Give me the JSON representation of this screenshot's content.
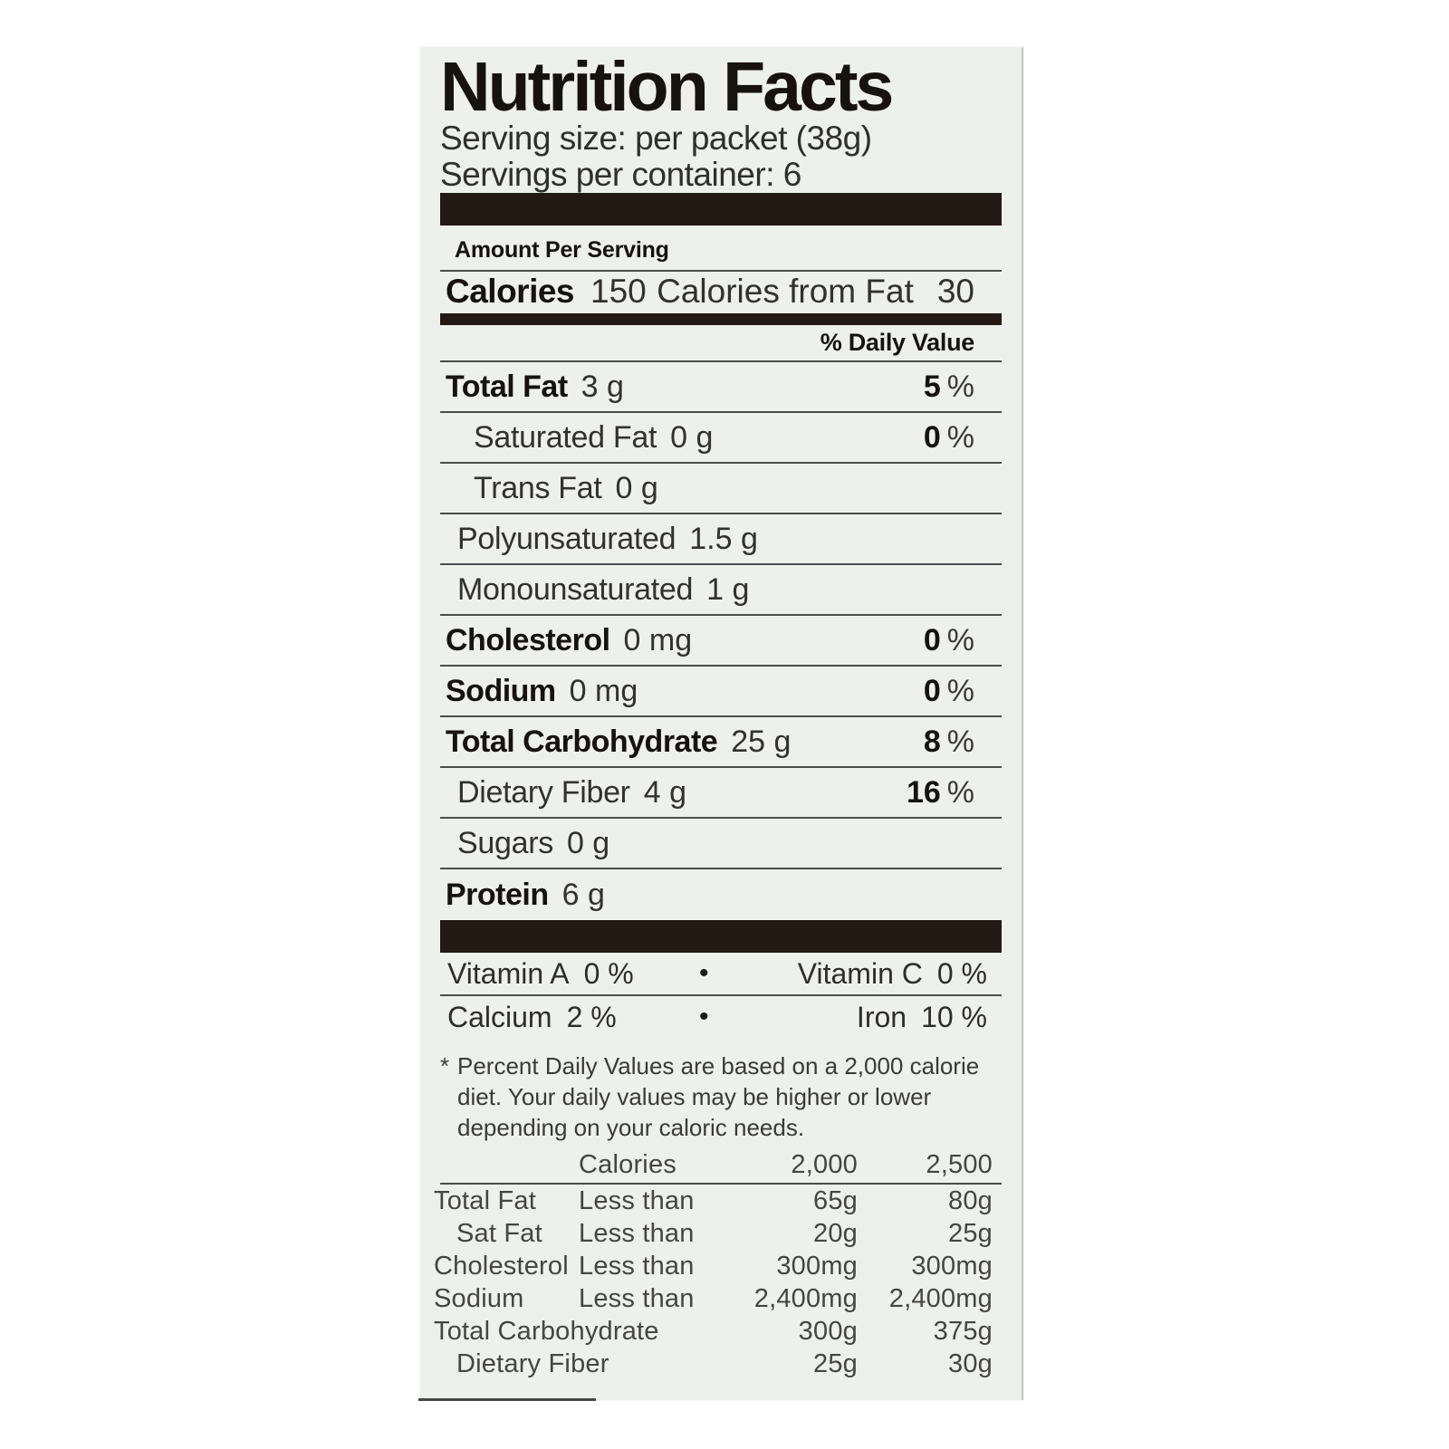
{
  "label": {
    "title": "Nutrition Facts",
    "serving_size": "Serving size: per packet (38g)",
    "servings_per_container": "Servings per container: 6",
    "amount_per_serving": "Amount Per Serving",
    "calories": {
      "label": "Calories",
      "value": "150",
      "from_fat_label": "Calories from Fat",
      "from_fat_value": "30"
    },
    "daily_value_header": "% Daily Value",
    "percent_sign": "%",
    "bullet": "•",
    "nutrient_rows": [
      {
        "name": "Total Fat",
        "amount": "3 g",
        "dv": "5"
      },
      {
        "name": "Saturated Fat",
        "amount": "0 g",
        "dv": "0"
      },
      {
        "name": "Trans Fat",
        "amount": "0 g",
        "dv": ""
      },
      {
        "name": "Polyunsaturated",
        "amount": "1.5 g",
        "dv": ""
      },
      {
        "name": "Monounsaturated",
        "amount": "1 g",
        "dv": ""
      },
      {
        "name": "Cholesterol",
        "amount": "0 mg",
        "dv": "0"
      },
      {
        "name": "Sodium",
        "amount": "0 mg",
        "dv": "0"
      },
      {
        "name": "Total Carbohydrate",
        "amount": "25 g",
        "dv": "8"
      },
      {
        "name": "Dietary Fiber",
        "amount": "4 g",
        "dv": "16"
      },
      {
        "name": "Sugars",
        "amount": "0 g",
        "dv": ""
      },
      {
        "name": "Protein",
        "amount": "6 g",
        "dv": ""
      }
    ],
    "micronutrient_rows": [
      {
        "left_name": "Vitamin A",
        "left_value": "0 %",
        "right_name": "Vitamin C",
        "right_value": "0 %"
      },
      {
        "left_name": "Calcium",
        "left_value": "2 %",
        "right_name": "Iron",
        "right_value": "10 %"
      }
    ],
    "footnote": {
      "marker": "*",
      "lines": [
        "Percent Daily Values are based on a 2,000 calorie",
        "diet. Your daily values may be higher or lower",
        "depending on your caloric needs."
      ]
    },
    "daily_value_table": {
      "header": {
        "calories": "Calories",
        "v2000": "2,000",
        "v2500": "2,500"
      },
      "rows": [
        {
          "nutrient": "Total Fat",
          "qualifier": "Less than",
          "v2000": "65g",
          "v2500": "80g"
        },
        {
          "nutrient": "Sat Fat",
          "qualifier": "Less than",
          "v2000": "20g",
          "v2500": "25g"
        },
        {
          "nutrient": "Cholesterol",
          "qualifier": "Less than",
          "v2000": "300mg",
          "v2500": "300mg"
        },
        {
          "nutrient": "Sodium",
          "qualifier": "Less than",
          "v2000": "2,400mg",
          "v2500": "2,400mg"
        },
        {
          "nutrient": "Total Carbohydrate",
          "qualifier": "",
          "v2000": "300g",
          "v2500": "375g"
        },
        {
          "nutrient": "Dietary Fiber",
          "qualifier": "",
          "v2000": "25g",
          "v2500": "30g"
        }
      ]
    },
    "colors": {
      "label_background": "#eef0ec",
      "separator_bar": "#221a13",
      "rule_line": "#4c4c4c",
      "bold_text": "#15120f",
      "body_text": "#33312d"
    }
  }
}
